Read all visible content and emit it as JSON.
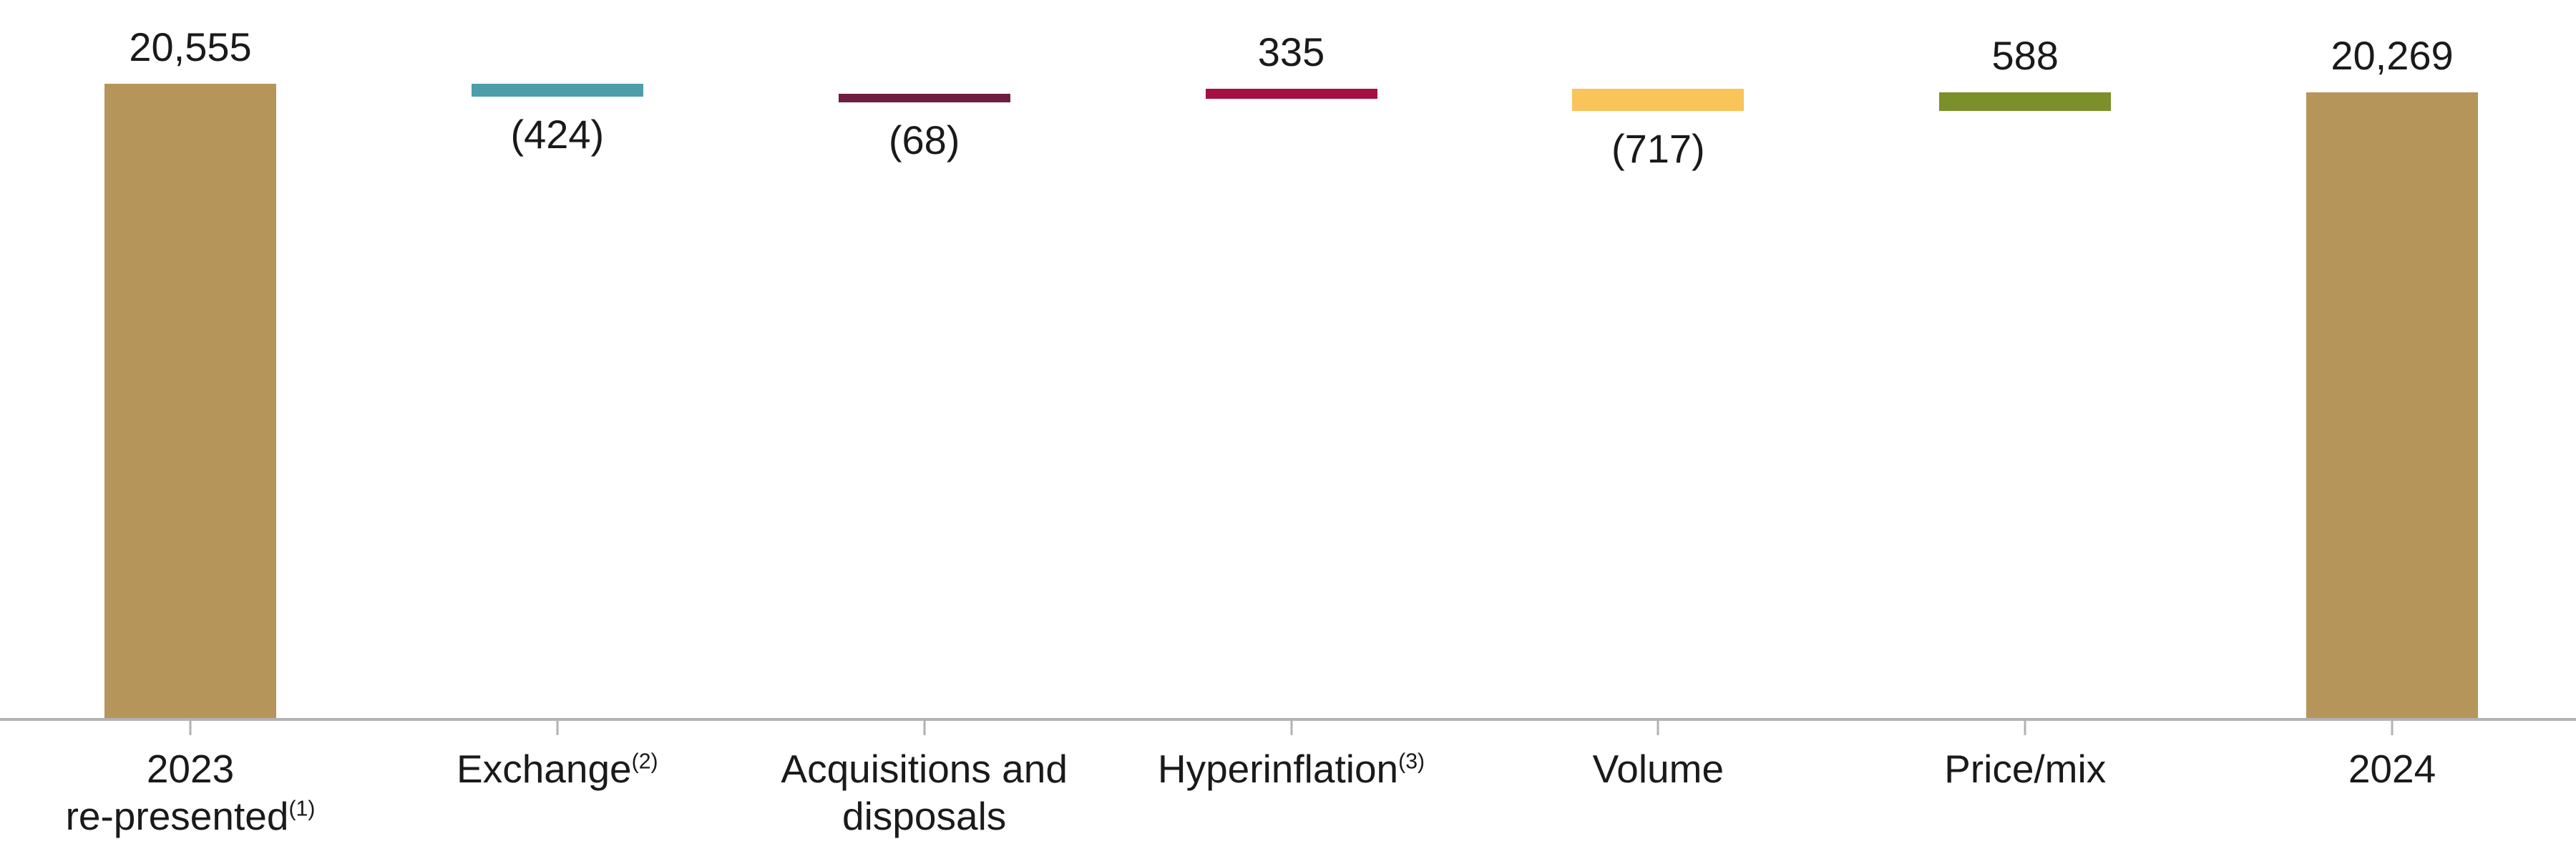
{
  "chart_data": {
    "type": "waterfall",
    "title": "",
    "xlabel": "",
    "ylabel": "",
    "axis_min": 0,
    "axis_max": 20555,
    "grid": false,
    "legend": "none",
    "axis_line_color": "#b2b2b2",
    "value_label_color": "#1a1a1a",
    "category_label_color": "#1a1a1a",
    "bars": [
      {
        "type": "total",
        "value": 20555,
        "display": "20,555",
        "label_position": "above",
        "color": "#b5955a",
        "category_lines": [
          {
            "text": "2023"
          },
          {
            "text": "re-presented",
            "sup": "(1)"
          }
        ]
      },
      {
        "type": "delta",
        "value": -424,
        "display": "(424)",
        "label_position": "below",
        "color": "#4d9ea8",
        "category_lines": [
          {
            "text": "Exchange",
            "sup": "(2)"
          }
        ]
      },
      {
        "type": "delta",
        "value": -68,
        "display": "(68)",
        "label_position": "below",
        "color": "#6e1e41",
        "category_lines": [
          {
            "text": "Acquisitions and"
          },
          {
            "text": "disposals"
          }
        ]
      },
      {
        "type": "delta",
        "value": 335,
        "display": "335",
        "label_position": "above",
        "color": "#a50f44",
        "category_lines": [
          {
            "text": "Hyperinflation",
            "sup": "(3)"
          }
        ]
      },
      {
        "type": "delta",
        "value": -717,
        "display": "(717)",
        "label_position": "below",
        "color": "#f9c45a",
        "category_lines": [
          {
            "text": "Volume"
          }
        ]
      },
      {
        "type": "delta",
        "value": 588,
        "display": "588",
        "label_position": "above",
        "color": "#7b8f2b",
        "category_lines": [
          {
            "text": "Price/mix"
          }
        ]
      },
      {
        "type": "total",
        "value": 20269,
        "display": "20,269",
        "label_position": "above",
        "color": "#b5955a",
        "category_lines": [
          {
            "text": "2024"
          }
        ]
      }
    ]
  }
}
